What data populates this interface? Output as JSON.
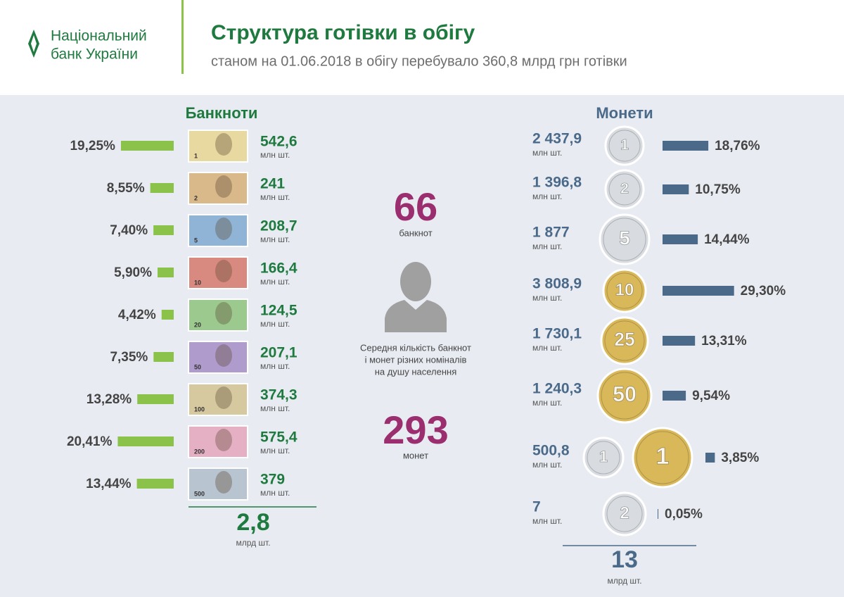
{
  "header": {
    "logo_line1": "Національний",
    "logo_line2": "банк України",
    "title": "Структура готівки в обігу",
    "subtitle": "станом на 01.06.2018 в обігу перебувало 360,8 млрд грн готівки"
  },
  "banknotes": {
    "heading": "Банкноти",
    "rows": [
      {
        "denomination": "1",
        "share": {
          "value": 19.25,
          "label": "19,25%"
        },
        "count": "542,6",
        "unit": "млн шт."
      },
      {
        "denomination": "2",
        "share": {
          "value": 8.55,
          "label": "8,55%"
        },
        "count": "241",
        "unit": "млн шт."
      },
      {
        "denomination": "5",
        "share": {
          "value": 7.4,
          "label": "7,40%"
        },
        "count": "208,7",
        "unit": "млн шт."
      },
      {
        "denomination": "10",
        "share": {
          "value": 5.9,
          "label": "5,90%"
        },
        "count": "166,4",
        "unit": "млн шт."
      },
      {
        "denomination": "20",
        "share": {
          "value": 4.42,
          "label": "4,42%"
        },
        "count": "124,5",
        "unit": "млн шт."
      },
      {
        "denomination": "50",
        "share": {
          "value": 7.35,
          "label": "7,35%"
        },
        "count": "207,1",
        "unit": "млн шт."
      },
      {
        "denomination": "100",
        "share": {
          "value": 13.28,
          "label": "13,28%"
        },
        "count": "374,3",
        "unit": "млн шт."
      },
      {
        "denomination": "200",
        "share": {
          "value": 20.41,
          "label": "20,41%"
        },
        "count": "575,4",
        "unit": "млн шт."
      },
      {
        "denomination": "500",
        "share": {
          "value": 13.44,
          "label": "13,44%"
        },
        "count": "379",
        "unit": "млн шт."
      }
    ],
    "total": "2,8",
    "total_unit": "млрд шт."
  },
  "center": {
    "banknotes_per_capita": "66",
    "banknotes_label": "банкнот",
    "caption": [
      "Середня кількість банкнот",
      "і монет різних номіналів",
      "на душу населення"
    ],
    "coins_per_capita": "293",
    "coins_label": "монет"
  },
  "coins": {
    "heading": "Монети",
    "rows": [
      {
        "denominations": [
          "1"
        ],
        "count": "2 437,9",
        "unit": "млн шт.",
        "share": {
          "value": 18.76,
          "label": "18,76%"
        }
      },
      {
        "denominations": [
          "2"
        ],
        "count": "1 396,8",
        "unit": "млн шт.",
        "share": {
          "value": 10.75,
          "label": "10,75%"
        }
      },
      {
        "denominations": [
          "5"
        ],
        "count": "1 877",
        "unit": "млн шт.",
        "share": {
          "value": 14.44,
          "label": "14,44%"
        }
      },
      {
        "denominations": [
          "10"
        ],
        "count": "3 808,9",
        "unit": "млн шт.",
        "share": {
          "value": 29.3,
          "label": "29,30%"
        }
      },
      {
        "denominations": [
          "25"
        ],
        "count": "1 730,1",
        "unit": "млн шт.",
        "share": {
          "value": 13.31,
          "label": "13,31%"
        }
      },
      {
        "denominations": [
          "50"
        ],
        "count": "1 240,3",
        "unit": "млн шт.",
        "share": {
          "value": 9.54,
          "label": "9,54%"
        }
      },
      {
        "denominations": [
          "1",
          "1"
        ],
        "count": "500,8",
        "unit": "млн шт.",
        "share": {
          "value": 3.85,
          "label": "3,85%"
        }
      },
      {
        "denominations": [
          "2"
        ],
        "count": "7",
        "unit": "млн шт.",
        "share": {
          "value": 0.05,
          "label": "0,05%"
        }
      }
    ],
    "total": "13",
    "total_unit": "млрд шт."
  }
}
